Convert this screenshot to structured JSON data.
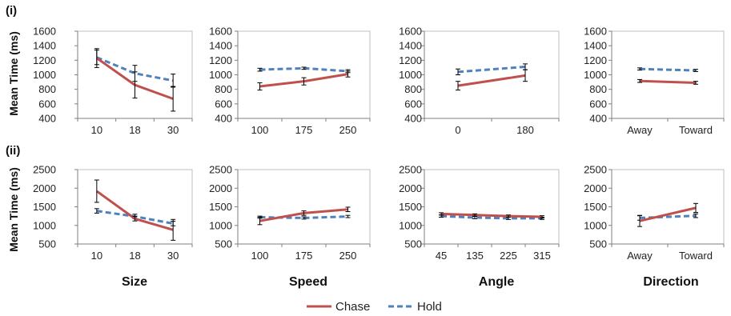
{
  "figure": {
    "row_labels": [
      "(i)",
      "(ii)"
    ],
    "y_axis_label": "Mean Time (ms)",
    "column_labels": [
      "Size",
      "Speed",
      "Angle",
      "Direction"
    ]
  },
  "legend": {
    "placement": "bottom-center",
    "items": [
      {
        "name": "Chase",
        "color": "#c0504d",
        "style": "solid"
      },
      {
        "name": "Hold",
        "color": "#4f81bd",
        "style": "dashed"
      }
    ]
  },
  "chart_data": [
    {
      "type": "line",
      "row": "(i)",
      "column": "Size",
      "categories": [
        "10",
        "18",
        "30"
      ],
      "ylim": [
        400,
        1600
      ],
      "yticks": [
        400,
        600,
        800,
        1000,
        1200,
        1400,
        1600
      ],
      "series": [
        {
          "name": "Chase",
          "values": [
            1230,
            860,
            670
          ],
          "err": [
            130,
            180,
            170
          ]
        },
        {
          "name": "Hold",
          "values": [
            1240,
            1020,
            920
          ],
          "err": [
            100,
            110,
            90
          ]
        }
      ]
    },
    {
      "type": "line",
      "row": "(i)",
      "column": "Speed",
      "categories": [
        "100",
        "175",
        "250"
      ],
      "ylim": [
        400,
        1600
      ],
      "yticks": [
        400,
        600,
        800,
        1000,
        1200,
        1400,
        1600
      ],
      "series": [
        {
          "name": "Chase",
          "values": [
            840,
            910,
            1010
          ],
          "err": [
            50,
            50,
            40
          ]
        },
        {
          "name": "Hold",
          "values": [
            1070,
            1090,
            1050
          ],
          "err": [
            20,
            15,
            20
          ]
        }
      ]
    },
    {
      "type": "line",
      "row": "(i)",
      "column": "Angle",
      "categories": [
        "0",
        "180"
      ],
      "ylim": [
        400,
        1600
      ],
      "yticks": [
        400,
        600,
        800,
        1000,
        1200,
        1400,
        1600
      ],
      "series": [
        {
          "name": "Chase",
          "values": [
            850,
            990
          ],
          "err": [
            60,
            80
          ]
        },
        {
          "name": "Hold",
          "values": [
            1040,
            1110
          ],
          "err": [
            40,
            40
          ]
        }
      ]
    },
    {
      "type": "line",
      "row": "(i)",
      "column": "Direction",
      "categories": [
        "Away",
        "Toward"
      ],
      "ylim": [
        400,
        1600
      ],
      "yticks": [
        400,
        600,
        800,
        1000,
        1200,
        1400,
        1600
      ],
      "series": [
        {
          "name": "Chase",
          "values": [
            915,
            890
          ],
          "err": [
            20,
            20
          ]
        },
        {
          "name": "Hold",
          "values": [
            1080,
            1060
          ],
          "err": [
            15,
            15
          ]
        }
      ]
    },
    {
      "type": "line",
      "row": "(ii)",
      "column": "Size",
      "categories": [
        "10",
        "18",
        "30"
      ],
      "ylim": [
        500,
        2500
      ],
      "yticks": [
        500,
        1000,
        1500,
        2000,
        2500
      ],
      "series": [
        {
          "name": "Chase",
          "values": [
            1920,
            1180,
            880
          ],
          "err": [
            300,
            60,
            280
          ]
        },
        {
          "name": "Hold",
          "values": [
            1390,
            1240,
            1050
          ],
          "err": [
            60,
            60,
            60
          ]
        }
      ]
    },
    {
      "type": "line",
      "row": "(ii)",
      "column": "Speed",
      "categories": [
        "100",
        "175",
        "250"
      ],
      "ylim": [
        500,
        2500
      ],
      "yticks": [
        500,
        1000,
        1500,
        2000,
        2500
      ],
      "series": [
        {
          "name": "Chase",
          "values": [
            1120,
            1330,
            1430
          ],
          "err": [
            100,
            60,
            60
          ]
        },
        {
          "name": "Hold",
          "values": [
            1220,
            1200,
            1240
          ],
          "err": [
            30,
            30,
            30
          ]
        }
      ]
    },
    {
      "type": "line",
      "row": "(ii)",
      "column": "Angle",
      "categories": [
        "45",
        "135",
        "225",
        "315"
      ],
      "ylim": [
        500,
        2500
      ],
      "yticks": [
        500,
        1000,
        1500,
        2000,
        2500
      ],
      "series": [
        {
          "name": "Chase",
          "values": [
            1310,
            1280,
            1250,
            1230
          ],
          "err": [
            30,
            30,
            30,
            30
          ]
        },
        {
          "name": "Hold",
          "values": [
            1250,
            1210,
            1190,
            1190
          ],
          "err": [
            30,
            30,
            30,
            30
          ]
        }
      ]
    },
    {
      "type": "line",
      "row": "(ii)",
      "column": "Direction",
      "categories": [
        "Away",
        "Toward"
      ],
      "ylim": [
        500,
        2500
      ],
      "yticks": [
        500,
        1000,
        1500,
        2000,
        2500
      ],
      "series": [
        {
          "name": "Chase",
          "values": [
            1120,
            1470
          ],
          "err": [
            150,
            120
          ]
        },
        {
          "name": "Hold",
          "values": [
            1200,
            1260
          ],
          "err": [
            60,
            50
          ]
        }
      ]
    }
  ]
}
